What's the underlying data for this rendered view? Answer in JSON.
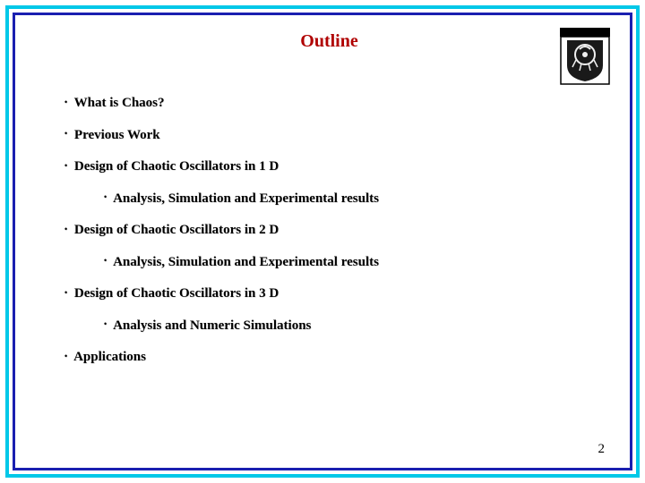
{
  "frame": {
    "outer_color": "#00c8e8",
    "inner_color": "#1a1fb0"
  },
  "title": {
    "text": "Outline",
    "color": "#b00000",
    "fontsize": 20
  },
  "bullets": {
    "dot": "•",
    "items": [
      {
        "level": 1,
        "text": "What is Chaos?"
      },
      {
        "level": 1,
        "text": "Previous Work"
      },
      {
        "level": 1,
        "text": "Design of Chaotic Oscillators in 1 D"
      },
      {
        "level": 2,
        "text": "Analysis, Simulation and Experimental results"
      },
      {
        "level": 1,
        "text": "Design of Chaotic Oscillators in 2 D"
      },
      {
        "level": 2,
        "text": "Analysis, Simulation and Experimental results"
      },
      {
        "level": 1,
        "text": "Design of Chaotic Oscillators in 3 D"
      },
      {
        "level": 2,
        "text": "Analysis and Numeric Simulations"
      },
      {
        "level": 1,
        "text": "Applications"
      }
    ]
  },
  "page_number": "2",
  "logo": {
    "border_color": "#000000",
    "bg_color": "#ffffff",
    "emblem_bg": "#1a1a1a",
    "emblem_fg": "#f0f0f0"
  }
}
